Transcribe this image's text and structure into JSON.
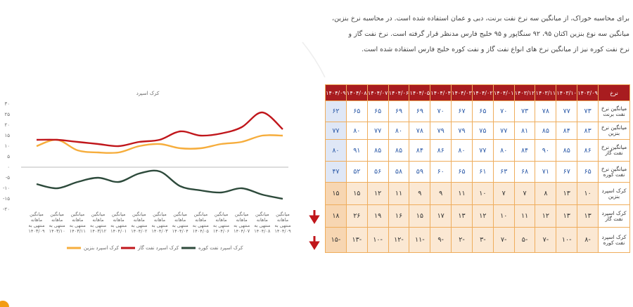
{
  "paragraph": [
    "برای محاسبه خوراک، از میانگین سه نرخ نفت برنت، دبی و عمان استفاده شده است. در محاسبه نرخ بنزین،",
    "میانگین سه نوع بنزین اکتان ۹۵، ۹۲ سنگاپور و ۹۵ خلیج فارس مدنظر قرار گرفته است. نرخ نفت گاز و",
    "نرخ نفت کوره نیز از میانگین نرخ های انواع نفت گاز و نفت کوره خلیج فارس استفاده شده است."
  ],
  "table": {
    "header": [
      "نرخ",
      "۱۴۰۳/۰۹",
      "۱۴۰۳/۱۰",
      "۱۴۰۳/۱۱",
      "۱۴۰۳/۱۲",
      "۱۴۰۴/۰۱",
      "۱۴۰۴/۰۲",
      "۱۴۰۴/۰۳",
      "۱۴۰۴/۰۴",
      "۱۴۰۴/۰۵",
      "۱۴۰۴/۰۶",
      "۱۴۰۴/۰۷",
      "۱۴۰۴/۰۸",
      "۱۴۰۴/۰۹"
    ],
    "rows": [
      [
        "میانگین نرخ نفت برنت",
        "۷۳",
        "۷۷",
        "۷۸",
        "۷۳",
        "۷۰",
        "۶۵",
        "۶۷",
        "۷۰",
        "۶۹",
        "۶۹",
        "۶۵",
        "۶۵",
        "۶۲"
      ],
      [
        "میانگین نرخ بنزین",
        "۸۳",
        "۸۴",
        "۸۵",
        "۸۱",
        "۷۷",
        "۷۵",
        "۷۹",
        "۷۹",
        "۷۸",
        "۸۰",
        "۷۷",
        "۸۰",
        "۷۷"
      ],
      [
        "میانگین نرخ نفت گاز",
        "۸۶",
        "۸۵",
        "۹۰",
        "۸۴",
        "۸۰",
        "۷۷",
        "۸۰",
        "۸۶",
        "۸۴",
        "۸۵",
        "۸۵",
        "۹۱",
        "۸۰"
      ],
      [
        "میانگین نرخ نفت کوره",
        "۶۵",
        "۶۷",
        "۷۱",
        "۶۸",
        "۶۳",
        "۶۱",
        "۶۵",
        "۶۰",
        "۵۹",
        "۵۸",
        "۵۶",
        "۵۲",
        "۴۷"
      ],
      [
        "کرک اسپرد بنزین",
        "۱۰",
        "۱۳",
        "۸",
        "۷",
        "۷",
        "۱۰",
        "۱۱",
        "۹",
        "۹",
        "۱۱",
        "۱۲",
        "۱۵",
        "۱۵"
      ],
      [
        "کرک اسپرد نفت گاز",
        "۱۳",
        "۱۳",
        "۱۲",
        "۱۱",
        "۱۰",
        "۱۲",
        "۱۳",
        "۱۷",
        "۱۵",
        "۱۶",
        "۱۹",
        "۲۶",
        "۱۸"
      ],
      [
        "کرک اسپرد نفت کوره",
        "-۸",
        "-۱۰",
        "-۷",
        "-۵",
        "-۷",
        "-۳",
        "-۲",
        "-۹",
        "-۱۱",
        "-۱۲",
        "-۱۰",
        "-۱۳",
        "-۱۵"
      ]
    ]
  },
  "chart_data": {
    "type": "line",
    "title": "کرک اسپرد",
    "categories": [
      "میانگین ماهانه منتهی به ۱۴۰۳/۰۹",
      "میانگین ماهانه منتهی به ۱۴۰۳/۱۰",
      "میانگین ماهانه منتهی به ۱۴۰۳/۱۱",
      "میانگین ماهانه منتهی به ۱۴۰۳/۱۲",
      "میانگین ماهانه منتهی به ۱۴۰۴/۰۱",
      "میانگین ماهانه منتهی به ۱۴۰۴/۰۲",
      "میانگین ماهانه منتهی به ۱۴۰۴/۰۳",
      "میانگین ماهانه منتهی به ۱۴۰۴/۰۴",
      "میانگین ماهانه منتهی به ۱۴۰۴/۰۵",
      "میانگین ماهانه منتهی به ۱۴۰۴/۰۶",
      "میانگین ماهانه منتهی به ۱۴۰۴/۰۷",
      "میانگین ماهانه منتهی به ۱۴۰۴/۰۸",
      "میانگین ماهانه منتهی به ۱۴۰۴/۰۹"
    ],
    "series": [
      {
        "name": "کرک اسپرد بنزین",
        "color": "#f6ad3c",
        "values": [
          10,
          13,
          8,
          7,
          7,
          10,
          11,
          9,
          9,
          11,
          12,
          15,
          15
        ]
      },
      {
        "name": "کرک اسپرد نفت گاز",
        "color": "#c0161b",
        "values": [
          13,
          13,
          12,
          11,
          10,
          12,
          13,
          17,
          15,
          16,
          19,
          26,
          18
        ]
      },
      {
        "name": "کرک اسپرد نفت کوره",
        "color": "#2d4a3b",
        "values": [
          -8,
          -10,
          -7,
          -5,
          -7,
          -3,
          -2,
          -9,
          -11,
          -12,
          -10,
          -13,
          -15
        ]
      }
    ],
    "ylim": [
      -20,
      30
    ],
    "yticks": [
      {
        "value": -20,
        "label": "-۲۰"
      },
      {
        "value": -15,
        "label": "-۱۵"
      },
      {
        "value": -10,
        "label": "-۱۰"
      },
      {
        "value": -5,
        "label": "-۵"
      },
      {
        "value": 0,
        "label": "۰"
      },
      {
        "value": 5,
        "label": "۵"
      },
      {
        "value": 10,
        "label": "۱۰"
      },
      {
        "value": 15,
        "label": "۱۵"
      },
      {
        "value": 20,
        "label": "۲۰"
      },
      {
        "value": 25,
        "label": "۲۵"
      },
      {
        "value": 30,
        "label": "۳۰"
      }
    ],
    "smooth": true
  }
}
